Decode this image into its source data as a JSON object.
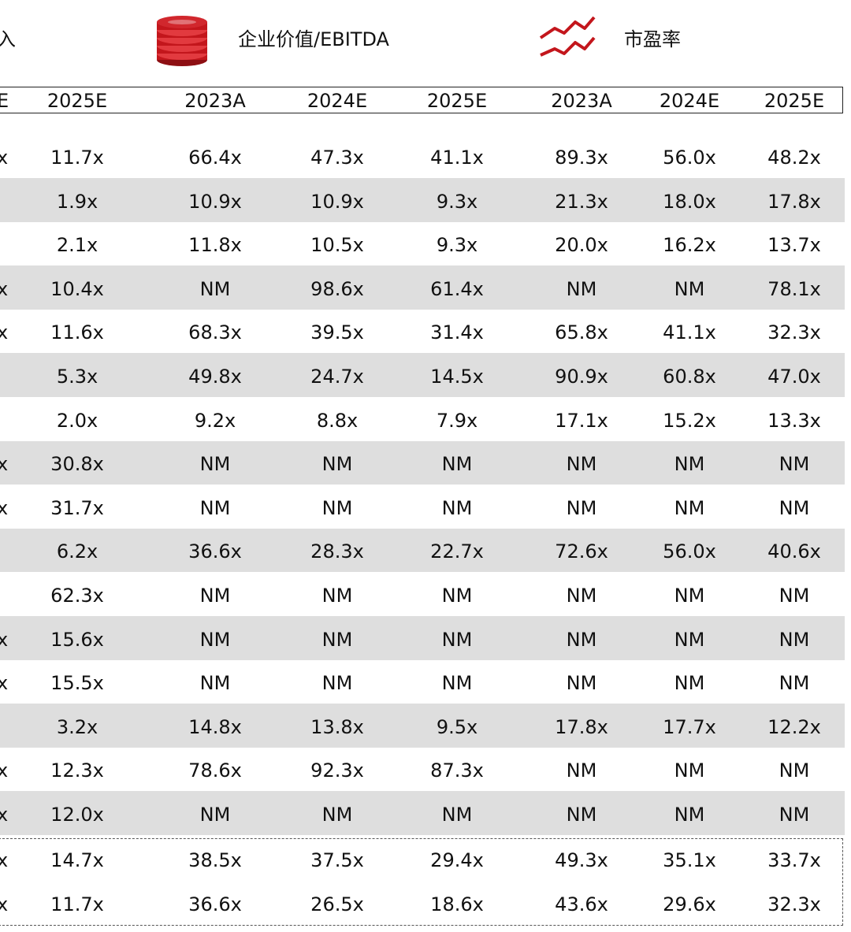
{
  "legend": {
    "revenue": "入",
    "ev_ebitda": "企业价值/EBITDA",
    "pe": "市盈率",
    "colors": {
      "accent": "#c3161c",
      "coin_dark": "#8d0f13",
      "shade": "#dedede"
    },
    "icons": [
      "coin-stack-icon",
      "line-trend-icon"
    ]
  },
  "headers": [
    "E",
    "2025E",
    "2023A",
    "2024E",
    "2025E",
    "2023A",
    "2024E",
    "2025E"
  ],
  "rows": [
    [
      "x",
      "11.7x",
      "66.4x",
      "47.3x",
      "41.1x",
      "89.3x",
      "56.0x",
      "48.2x"
    ],
    [
      "",
      "1.9x",
      "10.9x",
      "10.9x",
      "9.3x",
      "21.3x",
      "18.0x",
      "17.8x"
    ],
    [
      "",
      "2.1x",
      "11.8x",
      "10.5x",
      "9.3x",
      "20.0x",
      "16.2x",
      "13.7x"
    ],
    [
      "x",
      "10.4x",
      "NM",
      "98.6x",
      "61.4x",
      "NM",
      "NM",
      "78.1x"
    ],
    [
      "x",
      "11.6x",
      "68.3x",
      "39.5x",
      "31.4x",
      "65.8x",
      "41.1x",
      "32.3x"
    ],
    [
      "",
      "5.3x",
      "49.8x",
      "24.7x",
      "14.5x",
      "90.9x",
      "60.8x",
      "47.0x"
    ],
    [
      "",
      "2.0x",
      "9.2x",
      "8.8x",
      "7.9x",
      "17.1x",
      "15.2x",
      "13.3x"
    ],
    [
      "x",
      "30.8x",
      "NM",
      "NM",
      "NM",
      "NM",
      "NM",
      "NM"
    ],
    [
      "x",
      "31.7x",
      "NM",
      "NM",
      "NM",
      "NM",
      "NM",
      "NM"
    ],
    [
      "",
      "6.2x",
      "36.6x",
      "28.3x",
      "22.7x",
      "72.6x",
      "56.0x",
      "40.6x"
    ],
    [
      "",
      "62.3x",
      "NM",
      "NM",
      "NM",
      "NM",
      "NM",
      "NM"
    ],
    [
      "x",
      "15.6x",
      "NM",
      "NM",
      "NM",
      "NM",
      "NM",
      "NM"
    ],
    [
      "x",
      "15.5x",
      "NM",
      "NM",
      "NM",
      "NM",
      "NM",
      "NM"
    ],
    [
      "",
      "3.2x",
      "14.8x",
      "13.8x",
      "9.5x",
      "17.8x",
      "17.7x",
      "12.2x"
    ],
    [
      "x",
      "12.3x",
      "78.6x",
      "92.3x",
      "87.3x",
      "NM",
      "NM",
      "NM"
    ],
    [
      "x",
      "12.0x",
      "NM",
      "NM",
      "NM",
      "NM",
      "NM",
      "NM"
    ]
  ],
  "summary_rows": [
    [
      "x",
      "14.7x",
      "38.5x",
      "37.5x",
      "29.4x",
      "49.3x",
      "35.1x",
      "33.7x"
    ],
    [
      "x",
      "11.7x",
      "36.6x",
      "26.5x",
      "18.6x",
      "43.6x",
      "29.6x",
      "32.3x"
    ]
  ]
}
